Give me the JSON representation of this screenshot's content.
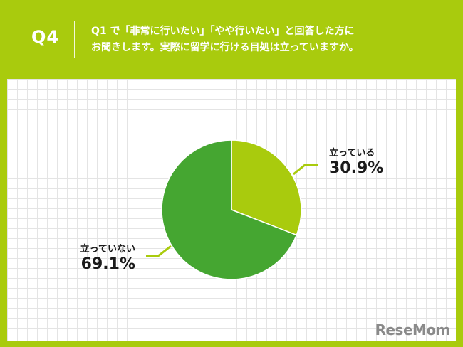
{
  "header": {
    "question_number": "Q4",
    "question_line1": "Q1 で「非常に行いたい」「やや行いたい」と回答した方に",
    "question_line2": "お聞きします。実際に留学に行ける目処は立っていますか。"
  },
  "colors": {
    "background": "#a9cb0d",
    "slice_yes": "#a9cb0d",
    "slice_no": "#45a631",
    "leader": "#a9cb0d"
  },
  "chart_data": {
    "type": "pie",
    "categories": [
      "立っている",
      "立っていない"
    ],
    "values": [
      30.9,
      69.1
    ],
    "value_labels": [
      "30.9%",
      "69.1%"
    ],
    "start": "12 o'clock",
    "direction": "clockwise",
    "legend": "none (labels beside slices)",
    "grid": true
  },
  "watermark": "ReseMom"
}
